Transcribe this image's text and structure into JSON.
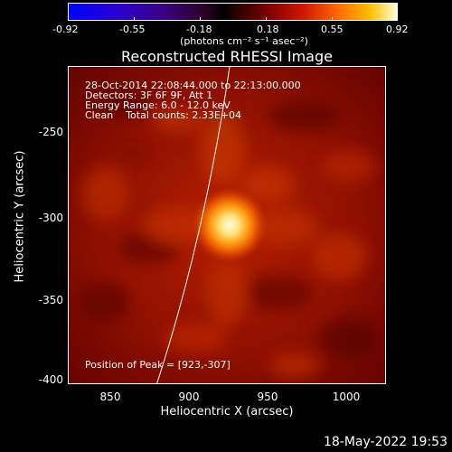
{
  "colorbar": {
    "ticks": [
      "-0.92",
      "-0.55",
      "-0.18",
      "0.18",
      "0.55",
      "0.92"
    ],
    "units": "(photons cm⁻² s⁻¹ asec⁻²)"
  },
  "title": "Reconstructed RHESSI Image",
  "info": {
    "time": "28-Oct-2014 22:08:44.000 to 22:13:00.000",
    "detectors": "Detectors: 3F 6F 9F, Att 1",
    "energy": "Energy Range: 6.0 - 12.0 keV",
    "clean": "Clean    Total counts: 2.33E+04",
    "peak": "Position of Peak = [923,-307]"
  },
  "axes": {
    "xlabel": "Heliocentric X (arcsec)",
    "ylabel": "Heliocentric Y (arcsec)",
    "xticks": [
      "850",
      "900",
      "950",
      "1000"
    ],
    "yticks": [
      "-250",
      "-300",
      "-350",
      "-400"
    ]
  },
  "timestamp": "18-May-2022 19:53"
}
